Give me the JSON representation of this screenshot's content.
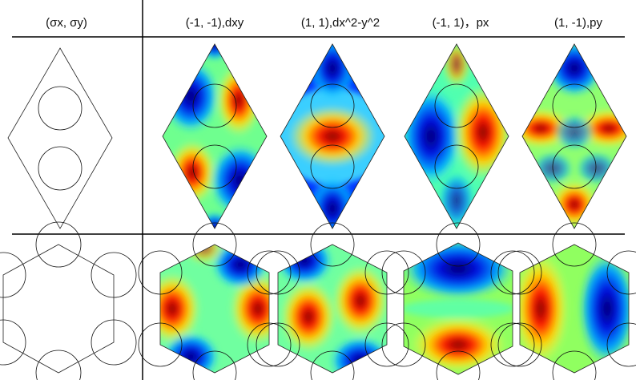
{
  "table": {
    "header": [
      "(σx, σy)",
      "(-1, -1),dxy",
      "(1, 1),dx^2-y^2",
      "(-1, 1)，px",
      "(1, -1),py"
    ]
  }
}
